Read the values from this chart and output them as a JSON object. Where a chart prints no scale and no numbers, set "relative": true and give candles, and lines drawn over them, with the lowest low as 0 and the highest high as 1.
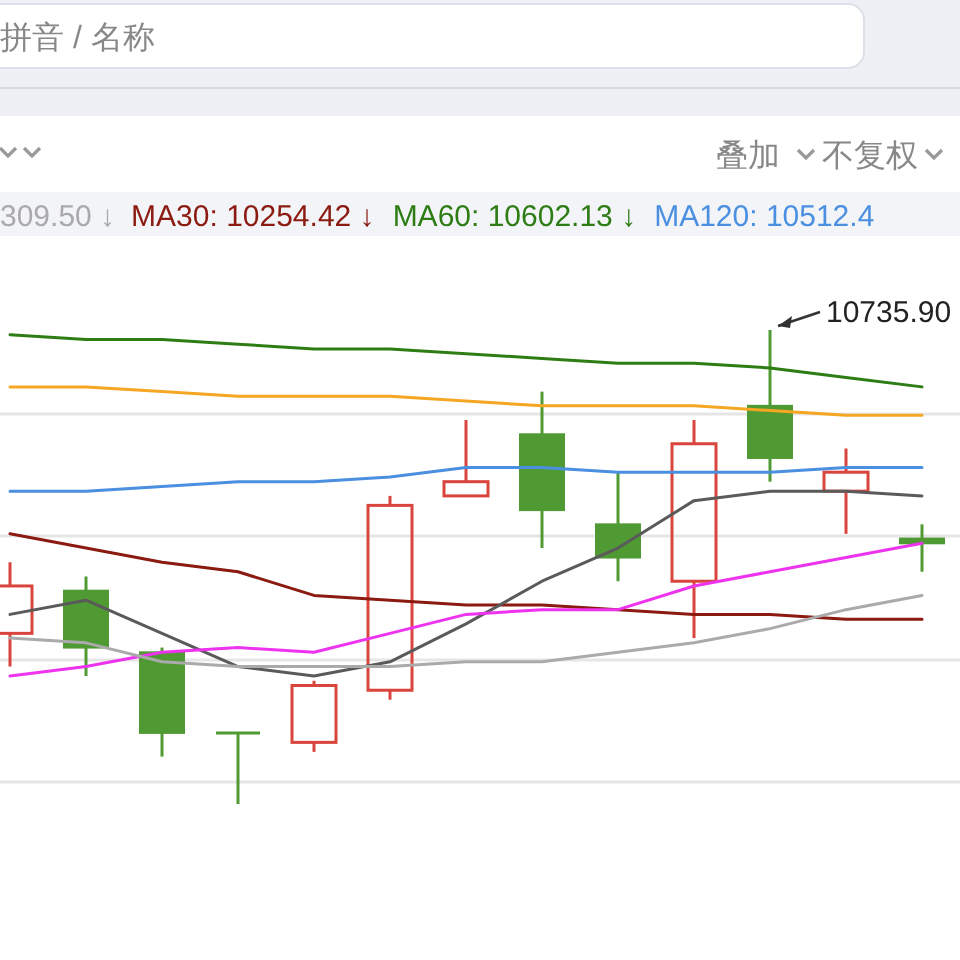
{
  "chart_data": {
    "type": "candlestick",
    "relative": true,
    "grid": "y",
    "legend": "top",
    "categories": [
      null,
      null,
      null,
      null,
      null,
      null,
      null,
      null,
      null,
      null,
      null,
      null,
      null
    ],
    "ohlc": [
      [
        0.36,
        0.51,
        0.29,
        0.46
      ],
      [
        0.45,
        0.48,
        0.27,
        0.33
      ],
      [
        0.32,
        0.33,
        0.1,
        0.15
      ],
      [
        0.15,
        0.15,
        0,
        0.15
      ],
      [
        0.13,
        0.26,
        0.11,
        0.25
      ],
      [
        0.24,
        0.65,
        0.22,
        0.63
      ],
      [
        0.65,
        0.81,
        0.65,
        0.68
      ],
      [
        0.78,
        0.87,
        0.54,
        0.62
      ],
      [
        0.59,
        0.7,
        0.47,
        0.52
      ],
      [
        0.47,
        0.81,
        0.35,
        0.76
      ],
      [
        0.84,
        1,
        0.68,
        0.73
      ],
      [
        0.66,
        0.75,
        0.57,
        0.7
      ],
      [
        0.56,
        0.59,
        0.49,
        0.55
      ]
    ],
    "colors": [
      "#d9443c",
      "#4f9a32",
      "#4f9a32",
      "#4f9a32",
      "#d9443c",
      "#d9443c",
      "#d9443c",
      "#4f9a32",
      "#4f9a32",
      "#d9443c",
      "#4f9a32",
      "#d9443c",
      "#4f9a32"
    ],
    "series": [
      {
        "name": "MA30: 10254.42 ↓",
        "type": "line",
        "color": "#8b1a10",
        "values": [
          0.57,
          0.54,
          0.51,
          0.49,
          0.44,
          0.43,
          0.42,
          0.42,
          0.41,
          0.4,
          0.4,
          0.39,
          0.39
        ]
      },
      {
        "name": "MA60: 10602.13 ↓",
        "type": "line",
        "color": "#2d7d14",
        "values": [
          0.99,
          0.98,
          0.98,
          0.97,
          0.96,
          0.96,
          0.95,
          0.94,
          0.93,
          0.93,
          0.92,
          0.9,
          0.88
        ]
      },
      {
        "name": "MA120: 10512.4",
        "type": "line",
        "color": "#4a8fe0",
        "values": [
          0.66,
          0.66,
          0.67,
          0.68,
          0.68,
          0.69,
          0.71,
          0.71,
          0.7,
          0.7,
          0.7,
          0.71,
          0.71
        ]
      },
      {
        "type": "line",
        "color": "#f5a623",
        "values": [
          0.88,
          0.88,
          0.87,
          0.86,
          0.86,
          0.86,
          0.85,
          0.84,
          0.84,
          0.84,
          0.83,
          0.82,
          0.82
        ]
      },
      {
        "type": "line",
        "color": "#5a5a5a",
        "values": [
          0.4,
          0.43,
          0.36,
          0.29,
          0.27,
          0.3,
          0.38,
          0.47,
          0.54,
          0.64,
          0.66,
          0.66,
          0.65
        ]
      },
      {
        "type": "line",
        "color": "#ee33ee",
        "values": [
          0.27,
          0.29,
          0.32,
          0.33,
          0.32,
          0.36,
          0.4,
          0.41,
          0.41,
          0.46,
          0.49,
          0.52,
          0.55
        ]
      },
      {
        "type": "line",
        "color": "#aaaaaa",
        "values": [
          0.35,
          0.34,
          0.3,
          0.29,
          0.29,
          0.29,
          0.3,
          0.3,
          0.32,
          0.34,
          0.37,
          0.41,
          0.44
        ]
      }
    ],
    "annotations": [
      "拼音 / 名称",
      "叠加",
      "不复权",
      "309.50 ↓",
      "10735.90"
    ]
  }
}
